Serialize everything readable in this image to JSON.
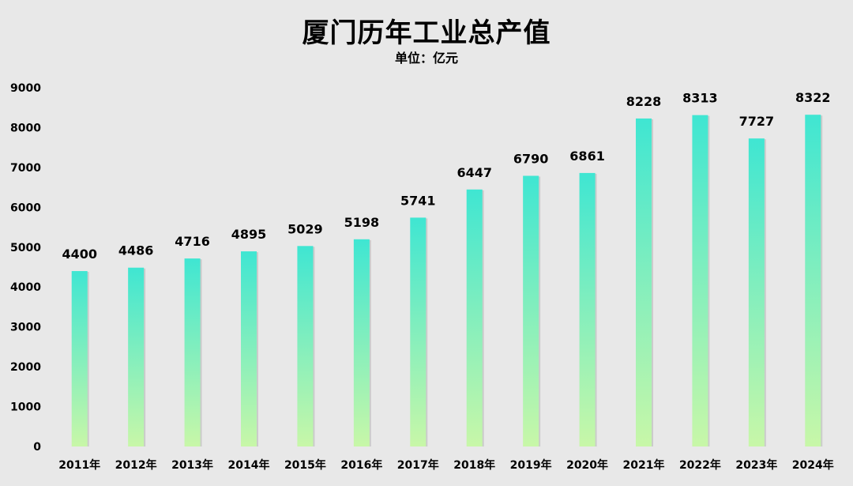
{
  "chart_data": {
    "type": "bar",
    "title": "厦门历年工业总产值",
    "subtitle": "单位：亿元",
    "xlabel": "",
    "ylabel": "",
    "categories": [
      "2011年",
      "2012年",
      "2013年",
      "2014年",
      "2015年",
      "2016年",
      "2017年",
      "2018年",
      "2019年",
      "2020年",
      "2021年",
      "2022年",
      "2023年",
      "2024年"
    ],
    "values": [
      4400,
      4486,
      4716,
      4895,
      5029,
      5198,
      5741,
      6447,
      6790,
      6861,
      8228,
      8313,
      7727,
      8322
    ],
    "ylim": [
      0,
      9000
    ],
    "yticks": [
      0,
      1000,
      2000,
      3000,
      4000,
      5000,
      6000,
      7000,
      8000,
      9000
    ],
    "grid": false,
    "legend": "none",
    "bar_gradient": {
      "top": "#3fe6d2",
      "bottom": "#c8f7a8"
    }
  }
}
